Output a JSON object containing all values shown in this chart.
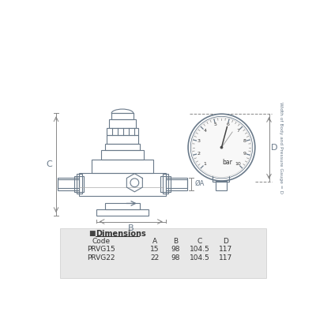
{
  "bg_color": "#ffffff",
  "line_color": "#6a7a8a",
  "table_bg": "#e8e8e8",
  "table_headers": [
    "Code",
    "A",
    "B",
    "C",
    "D"
  ],
  "table_rows": [
    [
      "PRVG15",
      "15",
      "98",
      "104.5",
      "117"
    ],
    [
      "PRVG22",
      "22",
      "98",
      "104.5",
      "117"
    ]
  ],
  "dim_label": "Dimensions",
  "gauge_numbers": [
    "1",
    "2",
    "3",
    "4",
    "5",
    "6",
    "7",
    "8",
    "9",
    "10"
  ],
  "bar_label": "bar",
  "side_text": "Width of Body and Pressure Gauge = D",
  "dim_A": "A",
  "dim_B": "B",
  "dim_C": "C",
  "dim_D": "D",
  "dim_OA": "ØA"
}
